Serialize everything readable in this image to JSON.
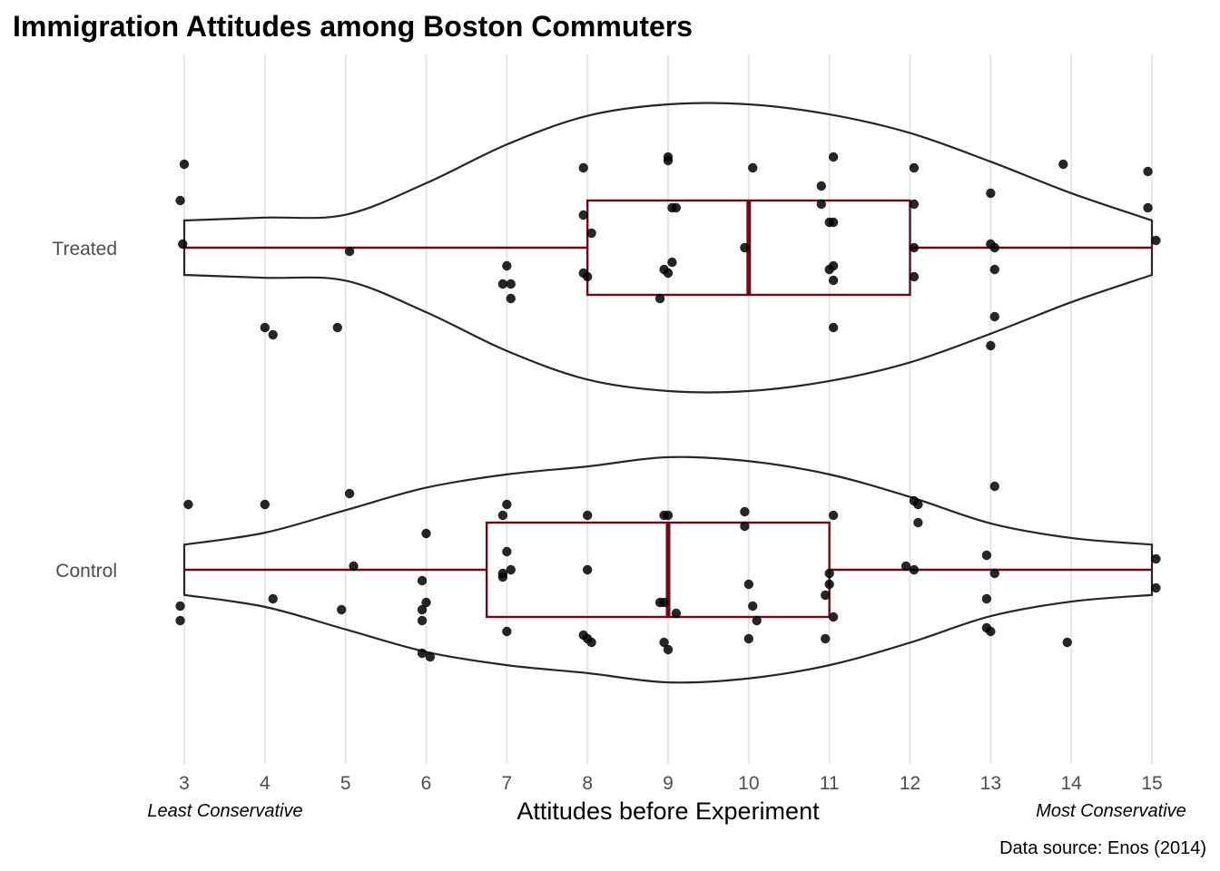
{
  "chart_data": {
    "type": "violin",
    "title": "Immigration Attitudes among Boston Commuters",
    "xlabel": "Attitudes before Experiment",
    "ylabel": "",
    "xlim": [
      3,
      15
    ],
    "x_ticks": [
      3,
      4,
      5,
      6,
      7,
      8,
      9,
      10,
      11,
      12,
      13,
      14,
      15
    ],
    "annotations": {
      "left": "Least Conservative",
      "right": "Most Conservative"
    },
    "caption": "Data source: Enos (2014)",
    "grid": "vertical major",
    "colors": {
      "violin_outline": "#262626",
      "boxplot": "#6e0a14",
      "points": "#000000",
      "grid": "#e5e5e5"
    },
    "groups": [
      {
        "name": "Treated",
        "boxplot": {
          "min": 3,
          "q1": 8,
          "median": 10,
          "q3": 12,
          "max": 15
        },
        "violin_density": [
          [
            3,
            0.19
          ],
          [
            4,
            0.21
          ],
          [
            5,
            0.23
          ],
          [
            6,
            0.45
          ],
          [
            7,
            0.72
          ],
          [
            8,
            0.92
          ],
          [
            9,
            1.0
          ],
          [
            10,
            1.0
          ],
          [
            11,
            0.93
          ],
          [
            12,
            0.8
          ],
          [
            13,
            0.6
          ],
          [
            14,
            0.38
          ],
          [
            15,
            0.19
          ]
        ],
        "points": [
          [
            3.0,
            0.23
          ],
          [
            2.95,
            0.13
          ],
          [
            2.98,
            0.01
          ],
          [
            4.0,
            -0.22
          ],
          [
            4.1,
            -0.24
          ],
          [
            4.9,
            -0.22
          ],
          [
            5.05,
            -0.01
          ],
          [
            6.95,
            -0.1
          ],
          [
            7.0,
            -0.05
          ],
          [
            7.05,
            -0.1
          ],
          [
            7.05,
            -0.14
          ],
          [
            7.95,
            0.22
          ],
          [
            7.95,
            0.09
          ],
          [
            8.05,
            0.04
          ],
          [
            7.95,
            -0.07
          ],
          [
            8.0,
            -0.08
          ],
          [
            9.0,
            0.24
          ],
          [
            9.0,
            0.25
          ],
          [
            9.05,
            0.11
          ],
          [
            9.1,
            0.11
          ],
          [
            9.05,
            -0.04
          ],
          [
            9.0,
            -0.07
          ],
          [
            8.95,
            -0.06
          ],
          [
            8.9,
            -0.14
          ],
          [
            9.95,
            0.0
          ],
          [
            10.05,
            0.22
          ],
          [
            10.9,
            0.17
          ],
          [
            10.9,
            0.12
          ],
          [
            11.05,
            0.25
          ],
          [
            11.0,
            0.07
          ],
          [
            11.05,
            0.07
          ],
          [
            11.05,
            -0.05
          ],
          [
            11.0,
            -0.06
          ],
          [
            11.05,
            -0.09
          ],
          [
            11.05,
            -0.22
          ],
          [
            12.05,
            0.22
          ],
          [
            12.05,
            0.12
          ],
          [
            12.05,
            0.0
          ],
          [
            12.05,
            -0.08
          ],
          [
            13.0,
            0.15
          ],
          [
            13.0,
            0.01
          ],
          [
            13.05,
            0.0
          ],
          [
            13.05,
            -0.06
          ],
          [
            13.05,
            -0.19
          ],
          [
            13.0,
            -0.27
          ],
          [
            13.9,
            0.23
          ],
          [
            14.95,
            0.21
          ],
          [
            14.95,
            0.11
          ],
          [
            15.05,
            0.02
          ]
        ]
      },
      {
        "name": "Control",
        "boxplot": {
          "min": 3,
          "q1": 6.75,
          "median": 9,
          "q3": 11,
          "max": 15
        },
        "violin_density": [
          [
            3,
            0.19
          ],
          [
            4,
            0.28
          ],
          [
            5,
            0.45
          ],
          [
            6,
            0.62
          ],
          [
            7,
            0.72
          ],
          [
            8,
            0.78
          ],
          [
            9,
            0.85
          ],
          [
            10,
            0.82
          ],
          [
            11,
            0.72
          ],
          [
            12,
            0.55
          ],
          [
            13,
            0.35
          ],
          [
            14,
            0.24
          ],
          [
            15,
            0.19
          ]
        ],
        "points": [
          [
            3.05,
            0.18
          ],
          [
            2.95,
            -0.1
          ],
          [
            2.95,
            -0.14
          ],
          [
            4.0,
            0.18
          ],
          [
            4.1,
            -0.08
          ],
          [
            5.05,
            0.21
          ],
          [
            5.1,
            0.01
          ],
          [
            4.95,
            -0.11
          ],
          [
            6.0,
            0.1
          ],
          [
            5.95,
            -0.03
          ],
          [
            6.0,
            -0.09
          ],
          [
            5.95,
            -0.11
          ],
          [
            5.95,
            -0.14
          ],
          [
            5.95,
            -0.23
          ],
          [
            6.05,
            -0.24
          ],
          [
            7.0,
            0.18
          ],
          [
            6.95,
            0.15
          ],
          [
            7.0,
            0.05
          ],
          [
            7.05,
            0.0
          ],
          [
            6.95,
            -0.01
          ],
          [
            6.95,
            -0.02
          ],
          [
            7.0,
            -0.17
          ],
          [
            8.0,
            0.15
          ],
          [
            8.0,
            0.0
          ],
          [
            7.95,
            -0.18
          ],
          [
            8.0,
            -0.19
          ],
          [
            8.05,
            -0.2
          ],
          [
            9.0,
            0.15
          ],
          [
            8.95,
            0.15
          ],
          [
            8.95,
            -0.09
          ],
          [
            8.9,
            -0.09
          ],
          [
            9.1,
            -0.12
          ],
          [
            8.95,
            -0.2
          ],
          [
            9.0,
            -0.22
          ],
          [
            9.95,
            0.16
          ],
          [
            9.95,
            0.12
          ],
          [
            10.0,
            -0.04
          ],
          [
            10.05,
            -0.1
          ],
          [
            10.1,
            -0.14
          ],
          [
            10.0,
            -0.19
          ],
          [
            11.05,
            0.15
          ],
          [
            11.0,
            -0.01
          ],
          [
            11.0,
            -0.04
          ],
          [
            10.95,
            -0.07
          ],
          [
            11.05,
            -0.13
          ],
          [
            10.95,
            -0.19
          ],
          [
            12.05,
            0.19
          ],
          [
            12.1,
            0.18
          ],
          [
            12.1,
            0.13
          ],
          [
            11.95,
            0.01
          ],
          [
            12.05,
            0.0
          ],
          [
            12.95,
            0.04
          ],
          [
            13.05,
            0.23
          ],
          [
            13.05,
            -0.01
          ],
          [
            12.95,
            -0.08
          ],
          [
            12.95,
            -0.16
          ],
          [
            13.0,
            -0.17
          ],
          [
            13.95,
            -0.2
          ],
          [
            15.05,
            0.03
          ],
          [
            15.05,
            -0.05
          ]
        ]
      }
    ]
  }
}
